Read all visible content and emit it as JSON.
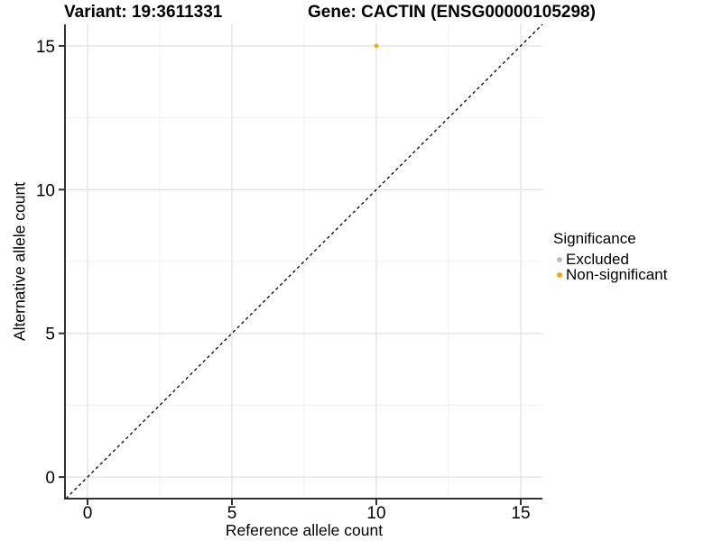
{
  "titles": {
    "variant": "Variant: 19:3611331",
    "gene": "Gene: CACTIN (ENSG00000105298)"
  },
  "axes": {
    "x_label": "Reference allele count",
    "y_label": "Alternative allele count"
  },
  "legend": {
    "title": "Significance",
    "position": "right",
    "items": [
      {
        "label": "Excluded",
        "color": "#bdbdbd"
      },
      {
        "label": "Non-significant",
        "color": "#ffa500"
      }
    ]
  },
  "chart_data": {
    "type": "scatter",
    "title": "Variant: 19:3611331   Gene: CACTIN (ENSG00000105298)",
    "xlabel": "Reference allele count",
    "ylabel": "Alternative allele count",
    "xlim": [
      -0.75,
      15.75
    ],
    "ylim": [
      -0.75,
      15.75
    ],
    "x_ticks": [
      0,
      5,
      10,
      15
    ],
    "y_ticks": [
      0,
      5,
      10,
      15
    ],
    "x_minor_ticks": [
      2.5,
      7.5,
      12.5
    ],
    "y_minor_ticks": [
      2.5,
      7.5,
      12.5
    ],
    "grid": true,
    "legend_position": "right",
    "series": [
      {
        "name": "Excluded",
        "color": "#bdbdbd",
        "points": []
      },
      {
        "name": "Non-significant",
        "color": "#ffa500",
        "points": [
          {
            "x": 10,
            "y": 15
          }
        ]
      }
    ],
    "reference_line": {
      "type": "identity-diagonal",
      "style": "dashed",
      "color": "#111111"
    },
    "style": {
      "grid_major_color": "#e3e3e3",
      "grid_minor_color": "#efefef",
      "axis_color": "#333333",
      "point_radius": 2.4
    }
  }
}
